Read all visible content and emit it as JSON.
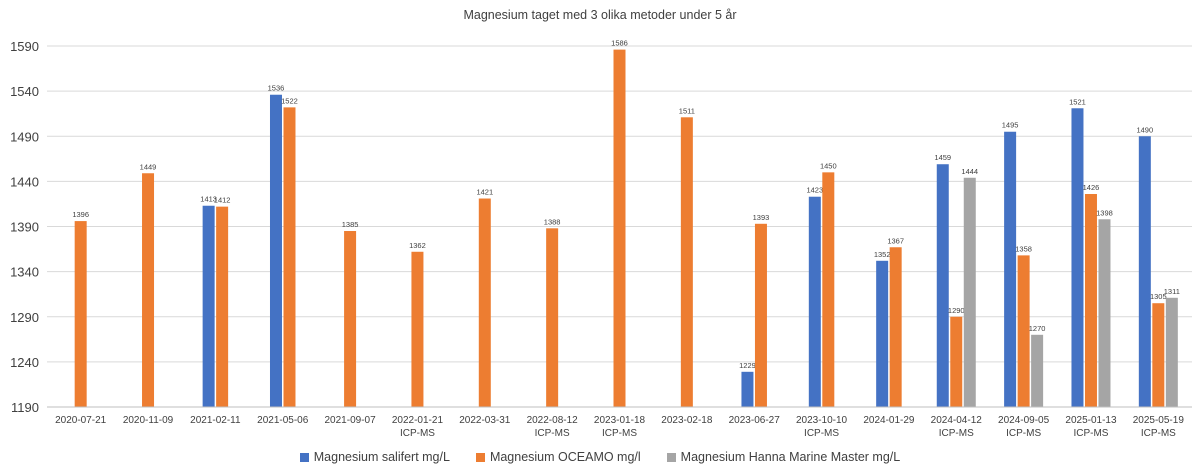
{
  "chart_data": {
    "type": "bar",
    "title": "Magnesium taget med 3 olika metoder under 5 år",
    "xlabel": "",
    "ylabel": "",
    "ylim": [
      1190,
      1590
    ],
    "yticks": [
      1190,
      1240,
      1290,
      1340,
      1390,
      1440,
      1490,
      1540,
      1590
    ],
    "grid": true,
    "legend_position": "bottom",
    "categories": [
      {
        "date": "2020-07-21",
        "method": ""
      },
      {
        "date": "2020-11-09",
        "method": ""
      },
      {
        "date": "2021-02-11",
        "method": ""
      },
      {
        "date": "2021-05-06",
        "method": ""
      },
      {
        "date": "2021-09-07",
        "method": ""
      },
      {
        "date": "2022-01-21",
        "method": "ICP-MS"
      },
      {
        "date": "2022-03-31",
        "method": ""
      },
      {
        "date": "2022-08-12",
        "method": "ICP-MS"
      },
      {
        "date": "2023-01-18",
        "method": "ICP-MS"
      },
      {
        "date": "2023-02-18",
        "method": ""
      },
      {
        "date": "2023-06-27",
        "method": ""
      },
      {
        "date": "2023-10-10",
        "method": "ICP-MS"
      },
      {
        "date": "2024-01-29",
        "method": ""
      },
      {
        "date": "2024-04-12",
        "method": "ICP-MS"
      },
      {
        "date": "2024-09-05",
        "method": "ICP-MS"
      },
      {
        "date": "2025-01-13",
        "method": "ICP-MS"
      },
      {
        "date": "2025-05-19",
        "method": "ICP-MS"
      }
    ],
    "series": [
      {
        "name": "Magnesium salifert mg/L",
        "color": "#4472C4",
        "values": [
          null,
          null,
          1413,
          1536,
          null,
          null,
          null,
          null,
          null,
          null,
          1229,
          1423,
          1352,
          1459,
          1495,
          1521,
          1490
        ]
      },
      {
        "name": "Magnesium OCEAMO  mg/l",
        "color": "#ED7D31",
        "values": [
          1396,
          1449,
          1412,
          1522,
          1385,
          1362,
          1421,
          1388,
          1586,
          1511,
          1393,
          1450,
          1367,
          1290,
          1358,
          1426,
          1305
        ]
      },
      {
        "name": "Magnesium Hanna Marine Master mg/L",
        "color": "#A5A5A5",
        "values": [
          null,
          null,
          null,
          null,
          null,
          null,
          null,
          null,
          null,
          null,
          null,
          null,
          null,
          1444,
          1270,
          1398,
          1311
        ]
      }
    ]
  }
}
